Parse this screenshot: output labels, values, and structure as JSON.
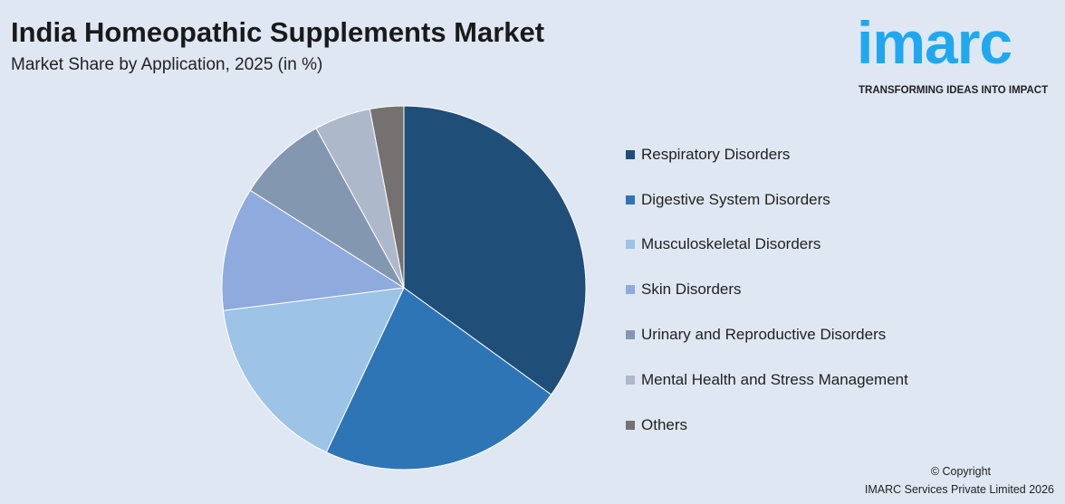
{
  "header": {
    "title": "India Homeopathic Supplements Market",
    "subtitle": "Market Share by Application, 2025 (in %)"
  },
  "logo": {
    "word": "imarc",
    "tagline": "TRANSFORMING IDEAS INTO IMPACT",
    "color": "#1fa8f0"
  },
  "chart_data": {
    "type": "pie",
    "title": "India Homeopathic Supplements Market",
    "subtitle": "Market Share by Application, 2025 (in %)",
    "legend_placement": "right",
    "categories": [
      "Respiratory Disorders",
      "Digestive System Disorders",
      "Musculoskeletal Disorders",
      "Skin Disorders",
      "Urinary and Reproductive Disorders",
      "Mental Health and Stress Management",
      "Others"
    ],
    "values": [
      35,
      22,
      16,
      11,
      8,
      5,
      3
    ],
    "colors": [
      "#1f4e79",
      "#2e75b6",
      "#9dc3e6",
      "#8faadc",
      "#8497b0",
      "#adb9ca",
      "#767171"
    ]
  },
  "footer": {
    "copyright": "© Copyright",
    "company": "IMARC Services Private Limited 2026"
  }
}
